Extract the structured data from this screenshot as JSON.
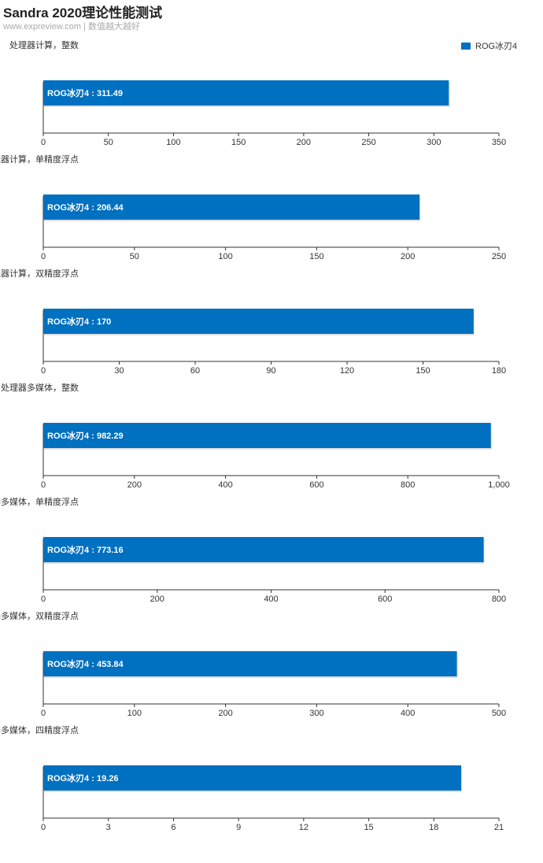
{
  "title": "Sandra 2020理论性能测试",
  "subtitle": "www.expreview.com | 数值越大越好",
  "legend": {
    "label": "ROG冰刃4",
    "color": "#0070C0"
  },
  "chart_data": [
    {
      "type": "bar",
      "orientation": "horizontal",
      "title": "处理器计算，整数",
      "categories": [
        "ROG冰刃4"
      ],
      "values": [
        311.49
      ],
      "value_label": "ROG冰刃4 : 311.49",
      "xlim": [
        0,
        350
      ],
      "ticks": [
        "0",
        "50",
        "100",
        "150",
        "200",
        "250",
        "300",
        "350"
      ],
      "tick_values": [
        0,
        50,
        100,
        150,
        200,
        250,
        300,
        350
      ]
    },
    {
      "type": "bar",
      "orientation": "horizontal",
      "title": "处理器计算，单精度浮点",
      "categories": [
        "ROG冰刃4"
      ],
      "values": [
        206.44
      ],
      "value_label": "ROG冰刃4 : 206.44",
      "xlim": [
        0,
        250
      ],
      "ticks": [
        "0",
        "50",
        "100",
        "150",
        "200",
        "250"
      ],
      "tick_values": [
        0,
        50,
        100,
        150,
        200,
        250
      ]
    },
    {
      "type": "bar",
      "orientation": "horizontal",
      "title": "处理器计算，双精度浮点",
      "categories": [
        "ROG冰刃4"
      ],
      "values": [
        170
      ],
      "value_label": "ROG冰刃4 : 170",
      "xlim": [
        0,
        180
      ],
      "ticks": [
        "0",
        "30",
        "60",
        "90",
        "120",
        "150",
        "180"
      ],
      "tick_values": [
        0,
        30,
        60,
        90,
        120,
        150,
        180
      ]
    },
    {
      "type": "bar",
      "orientation": "horizontal",
      "title": "处理器多媒体，整数",
      "categories": [
        "ROG冰刃4"
      ],
      "values": [
        982.29
      ],
      "value_label": "ROG冰刃4 : 982.29",
      "xlim": [
        0,
        1000
      ],
      "ticks": [
        "0",
        "200",
        "400",
        "600",
        "800",
        "1,000"
      ],
      "tick_values": [
        0,
        200,
        400,
        600,
        800,
        1000
      ]
    },
    {
      "type": "bar",
      "orientation": "horizontal",
      "title": "处理器多媒体，单精度浮点",
      "categories": [
        "ROG冰刃4"
      ],
      "values": [
        773.16
      ],
      "value_label": "ROG冰刃4 : 773.16",
      "xlim": [
        0,
        800
      ],
      "ticks": [
        "0",
        "200",
        "400",
        "600",
        "800"
      ],
      "tick_values": [
        0,
        200,
        400,
        600,
        800
      ]
    },
    {
      "type": "bar",
      "orientation": "horizontal",
      "title": "处理器多媒体，双精度浮点",
      "categories": [
        "ROG冰刃4"
      ],
      "values": [
        453.84
      ],
      "value_label": "ROG冰刃4 : 453.84",
      "xlim": [
        0,
        500
      ],
      "ticks": [
        "0",
        "100",
        "200",
        "300",
        "400",
        "500"
      ],
      "tick_values": [
        0,
        100,
        200,
        300,
        400,
        500
      ]
    },
    {
      "type": "bar",
      "orientation": "horizontal",
      "title": "处理器多媒体，四精度浮点",
      "categories": [
        "ROG冰刃4"
      ],
      "values": [
        19.26
      ],
      "value_label": "ROG冰刃4 : 19.26",
      "xlim": [
        0,
        21
      ],
      "ticks": [
        "0",
        "3",
        "6",
        "9",
        "12",
        "15",
        "18",
        "21"
      ],
      "tick_values": [
        0,
        3,
        6,
        9,
        12,
        15,
        18,
        21
      ]
    }
  ]
}
